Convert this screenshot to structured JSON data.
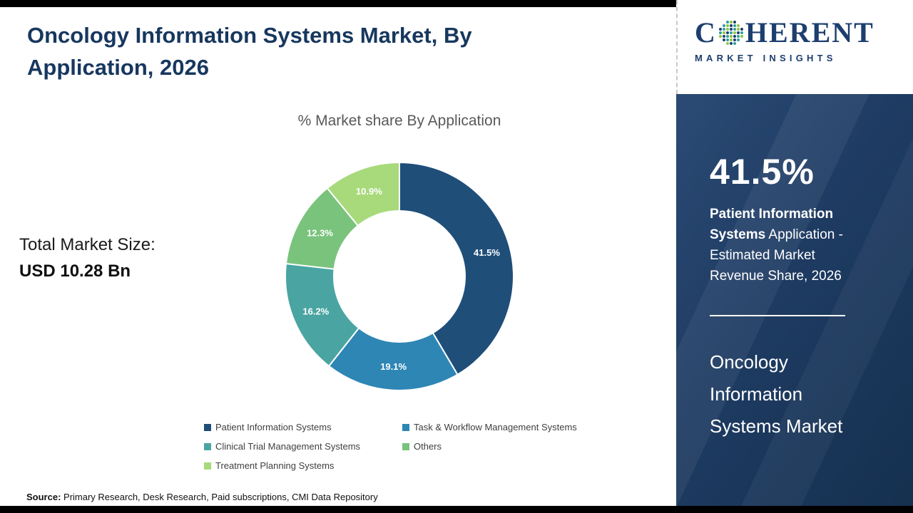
{
  "header": {
    "title": "Oncology Information Systems Market, By Application, 2026"
  },
  "total_market": {
    "label": "Total Market Size:",
    "value": "USD 10.28 Bn"
  },
  "chart_data": {
    "type": "pie",
    "donut": true,
    "title": "% Market share By Application",
    "units": "%",
    "start_angle_deg": 0,
    "direction": "clockwise",
    "legend_position": "bottom",
    "series": [
      {
        "name": "Patient Information Systems",
        "value": 41.5,
        "color": "#1f4e79"
      },
      {
        "name": "Task & Workflow Management Systems",
        "value": 19.1,
        "color": "#2e86b5"
      },
      {
        "name": "Clinical Trial Management Systems",
        "value": 16.2,
        "color": "#4aa5a2"
      },
      {
        "name": "Others",
        "value": 12.3,
        "color": "#79c37d"
      },
      {
        "name": "Treatment Planning Systems",
        "value": 10.9,
        "color": "#a8da7c"
      }
    ]
  },
  "source": {
    "label": "Source:",
    "text": " Primary Research, Desk Research, Paid subscriptions, CMI Data Repository"
  },
  "sidebar": {
    "logo": {
      "c": "C",
      "rest": "HERENT",
      "subtitle": "MARKET INSIGHTS",
      "navy": "#1d3e6e",
      "dot_palette": [
        "#2f9e9e",
        "#8cc63f",
        "#1d3e6e"
      ]
    },
    "stat_value": "41.5%",
    "stat_bold": "Patient Information Systems",
    "stat_rest": " Application - Estimated Market Revenue Share, 2026",
    "market_name": "Oncology Information Systems Market",
    "panel_color": "#1d3a60"
  }
}
